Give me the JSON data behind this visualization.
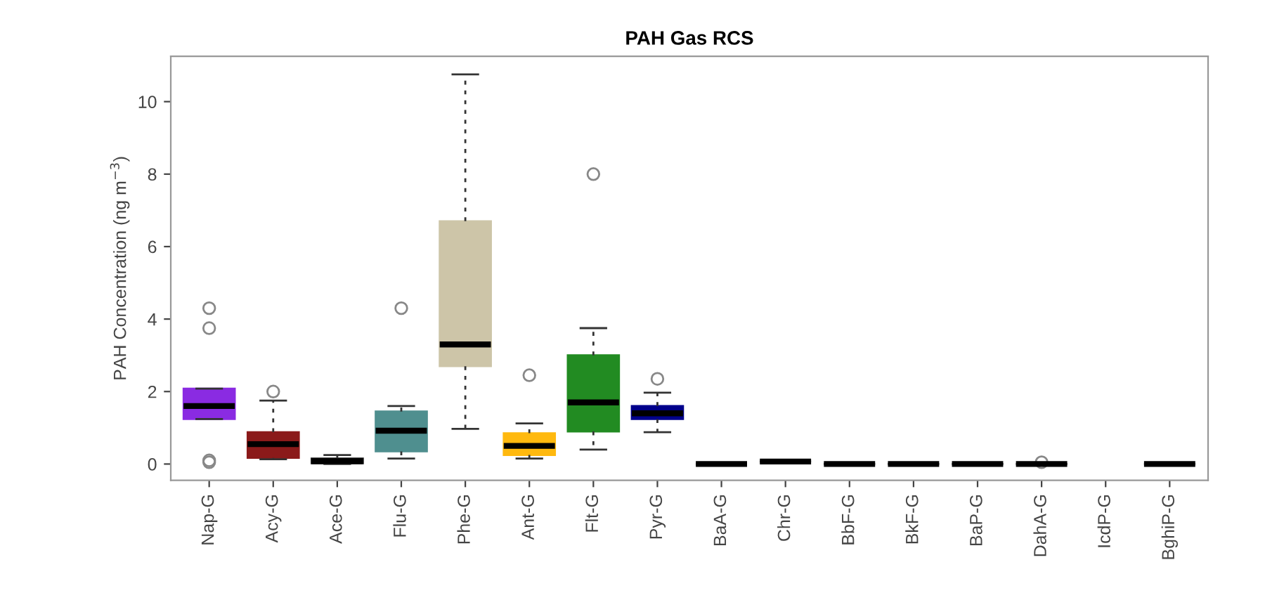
{
  "chart_data": {
    "type": "box",
    "title": "PAH Gas RCS",
    "ylabel": "PAH Concentration (ng m$^{−3}$)",
    "categories": [
      "Nap-G",
      "Acy-G",
      "Ace-G",
      "Flu-G",
      "Phe-G",
      "Ant-G",
      "Flt-G",
      "Pyr-G",
      "BaA-G",
      "Chr-G",
      "BbF-G",
      "BkF-G",
      "BaP-G",
      "DahA-G",
      "IcdP-G",
      "BghiP-G"
    ],
    "colors": [
      "#8a2be2",
      "#8b1a1a",
      "#1a1a1a",
      "#4f8f8f",
      "#cdc5a8",
      "#ffb90f",
      "#228b22",
      "#00008b",
      "#000000",
      "#000000",
      "#000000",
      "#000000",
      "#000000",
      "#000000",
      "#000000",
      "#000000"
    ],
    "boxes": [
      {
        "low": 1.24,
        "q1": 1.24,
        "median": 1.6,
        "q3": 2.08,
        "high": 2.08,
        "outliers": [
          4.3,
          3.75,
          0.1,
          0.05
        ]
      },
      {
        "low": 0.13,
        "q1": 0.17,
        "median": 0.55,
        "q3": 0.88,
        "high": 1.75,
        "outliers": [
          2.0
        ]
      },
      {
        "low": 0.0,
        "q1": 0.02,
        "median": 0.08,
        "q3": 0.15,
        "high": 0.25
      },
      {
        "low": 0.15,
        "q1": 0.35,
        "median": 0.92,
        "q3": 1.45,
        "high": 1.6,
        "outliers": [
          4.3
        ]
      },
      {
        "low": 0.97,
        "q1": 2.7,
        "median": 3.3,
        "q3": 6.7,
        "high": 10.75
      },
      {
        "low": 0.15,
        "q1": 0.25,
        "median": 0.5,
        "q3": 0.85,
        "high": 1.12,
        "outliers": [
          2.45
        ]
      },
      {
        "low": 0.4,
        "q1": 0.9,
        "median": 1.7,
        "q3": 3.0,
        "high": 3.75,
        "outliers": [
          8.0
        ]
      },
      {
        "low": 0.88,
        "q1": 1.24,
        "median": 1.4,
        "q3": 1.6,
        "high": 1.97,
        "outliers": [
          2.35
        ]
      },
      {
        "low": 0.0,
        "q1": 0.0,
        "median": 0.0,
        "q3": 0.0,
        "high": 0.0
      },
      {
        "low": 0.07,
        "q1": 0.07,
        "median": 0.07,
        "q3": 0.07,
        "high": 0.07
      },
      {
        "low": 0.0,
        "q1": 0.0,
        "median": 0.0,
        "q3": 0.0,
        "high": 0.0
      },
      {
        "low": 0.0,
        "q1": 0.0,
        "median": 0.0,
        "q3": 0.0,
        "high": 0.0
      },
      {
        "low": 0.0,
        "q1": 0.0,
        "median": 0.0,
        "q3": 0.0,
        "high": 0.0
      },
      {
        "low": 0.0,
        "q1": 0.0,
        "median": 0.0,
        "q3": 0.0,
        "high": 0.0,
        "outliers": [
          0.05
        ]
      },
      null,
      {
        "low": 0.0,
        "q1": 0.0,
        "median": 0.0,
        "q3": 0.0,
        "high": 0.0
      }
    ],
    "ylim": [
      -0.45,
      11.25
    ],
    "yticks": [
      0,
      2,
      4,
      6,
      8,
      10
    ],
    "grid": false,
    "legend": false
  }
}
